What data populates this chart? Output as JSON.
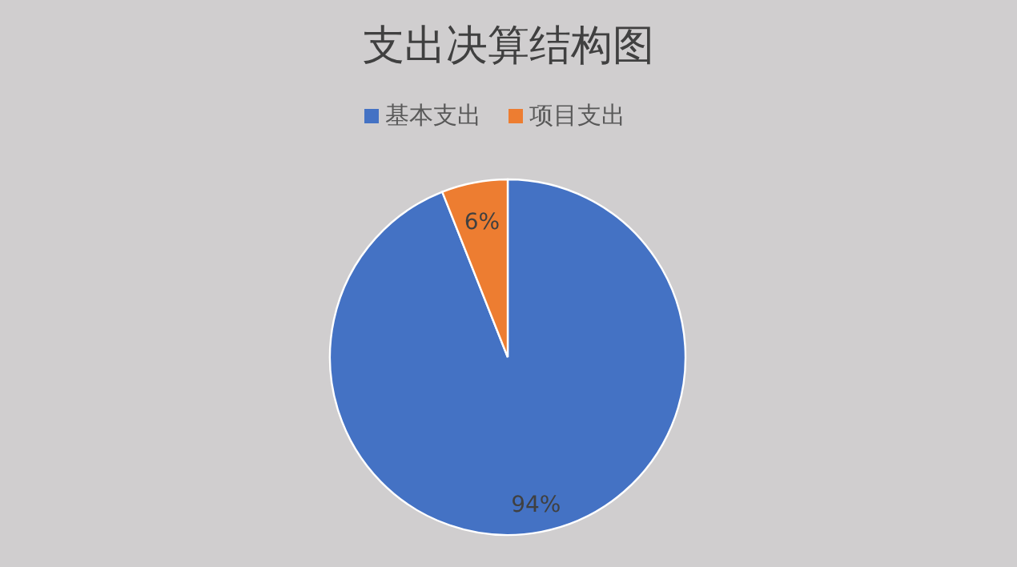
{
  "chart_data": {
    "type": "pie",
    "title": "支出决算结构图",
    "categories": [
      "基本支出",
      "项目支出"
    ],
    "values": [
      94,
      6
    ],
    "colors": [
      "#4472c4",
      "#ed7d31"
    ],
    "value_labels": [
      "94%",
      "6%"
    ],
    "legend": "top"
  }
}
